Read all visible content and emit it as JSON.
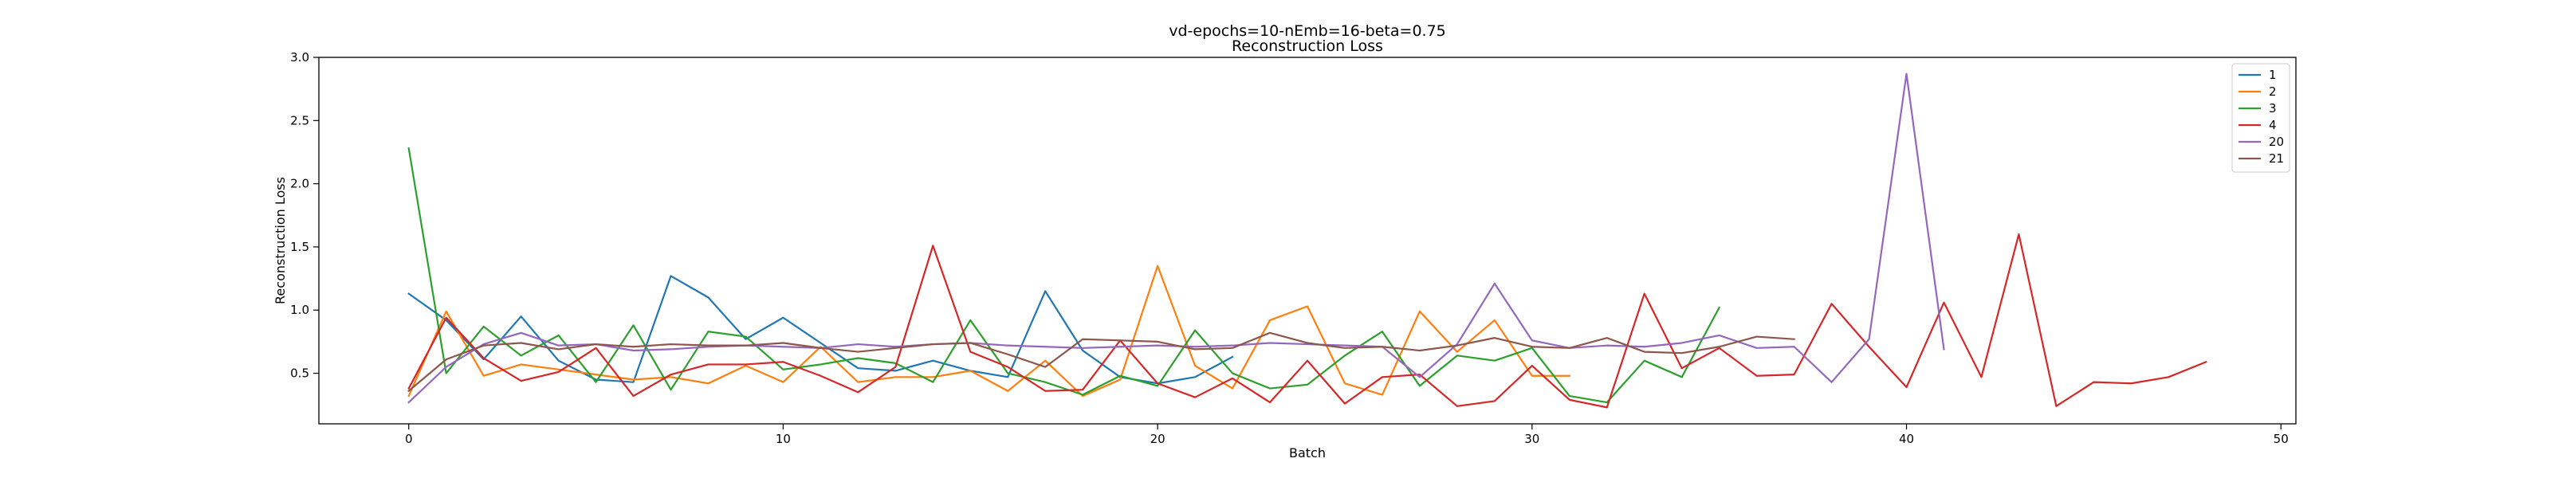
{
  "chart_data": {
    "type": "line",
    "title": "vd-epochs=10-nEmb=16-beta=0.75",
    "subtitle": "Reconstruction Loss",
    "xlabel": "Batch",
    "ylabel": "Reconstruction Loss",
    "xlim": [
      -2.4,
      50.4
    ],
    "ylim": [
      0.1,
      3.0
    ],
    "xticks": [
      0,
      10,
      20,
      30,
      40,
      50
    ],
    "yticks": [
      0.5,
      1.0,
      1.5,
      2.0,
      2.5,
      3.0
    ],
    "xtick_labels": [
      "0",
      "10",
      "20",
      "30",
      "40",
      "50"
    ],
    "ytick_labels": [
      "0.5",
      "1.0",
      "1.5",
      "2.0",
      "2.5",
      "3.0"
    ],
    "grid": false,
    "legend_position": "top-right",
    "series": [
      {
        "name": "1",
        "color": "#1f77b4",
        "x": [
          0,
          1,
          2,
          3,
          4,
          5,
          6,
          7,
          8,
          9,
          10,
          11,
          12,
          13,
          14,
          15,
          16,
          17,
          18,
          19,
          20,
          21,
          22
        ],
        "values": [
          1.13,
          0.92,
          0.61,
          0.95,
          0.6,
          0.45,
          0.43,
          1.27,
          1.1,
          0.77,
          0.94,
          0.74,
          0.54,
          0.52,
          0.6,
          0.52,
          0.47,
          1.15,
          0.68,
          0.47,
          0.42,
          0.47,
          0.63
        ]
      },
      {
        "name": "2",
        "color": "#ff7f0e",
        "x": [
          0,
          1,
          2,
          3,
          4,
          5,
          6,
          7,
          8,
          9,
          10,
          11,
          12,
          13,
          14,
          15,
          16,
          17,
          18,
          19,
          20,
          21,
          22,
          23,
          24,
          25,
          26,
          27,
          28,
          29,
          30,
          31
        ],
        "values": [
          0.32,
          0.99,
          0.48,
          0.57,
          0.53,
          0.49,
          0.45,
          0.47,
          0.42,
          0.56,
          0.43,
          0.71,
          0.43,
          0.47,
          0.47,
          0.52,
          0.36,
          0.6,
          0.32,
          0.45,
          1.35,
          0.56,
          0.38,
          0.92,
          1.03,
          0.42,
          0.33,
          0.99,
          0.67,
          0.92,
          0.48,
          0.48
        ]
      },
      {
        "name": "3",
        "color": "#2ca02c",
        "x": [
          0,
          1,
          2,
          3,
          4,
          5,
          6,
          7,
          8,
          9,
          10,
          11,
          12,
          13,
          14,
          15,
          16,
          17,
          18,
          19,
          20,
          21,
          22,
          23,
          24,
          25,
          26,
          27,
          28,
          29,
          30,
          31,
          32,
          33,
          34,
          35
        ],
        "values": [
          2.28,
          0.5,
          0.87,
          0.64,
          0.8,
          0.43,
          0.88,
          0.37,
          0.83,
          0.79,
          0.53,
          0.57,
          0.62,
          0.58,
          0.43,
          0.92,
          0.5,
          0.43,
          0.33,
          0.48,
          0.4,
          0.84,
          0.5,
          0.38,
          0.41,
          0.64,
          0.83,
          0.4,
          0.64,
          0.6,
          0.7,
          0.32,
          0.27,
          0.6,
          0.47,
          1.02
        ]
      },
      {
        "name": "4",
        "color": "#d62728",
        "x": [
          0,
          1,
          2,
          3,
          4,
          5,
          6,
          7,
          8,
          9,
          10,
          11,
          12,
          13,
          14,
          15,
          16,
          17,
          18,
          19,
          20,
          21,
          22,
          23,
          24,
          25,
          26,
          27,
          28,
          29,
          30,
          31,
          32,
          33,
          34,
          35,
          36,
          37,
          38,
          39,
          40,
          41,
          42,
          43,
          44,
          45,
          46,
          47,
          48
        ],
        "values": [
          0.38,
          0.94,
          0.62,
          0.44,
          0.51,
          0.7,
          0.32,
          0.49,
          0.57,
          0.57,
          0.59,
          0.48,
          0.35,
          0.55,
          1.51,
          0.67,
          0.55,
          0.36,
          0.37,
          0.76,
          0.42,
          0.31,
          0.46,
          0.27,
          0.6,
          0.26,
          0.47,
          0.49,
          0.24,
          0.28,
          0.56,
          0.29,
          0.23,
          1.13,
          0.54,
          0.7,
          0.48,
          0.49,
          1.05,
          0.71,
          0.39,
          1.06,
          0.47,
          1.6,
          0.24,
          0.43,
          0.42,
          0.47,
          0.59
        ]
      },
      {
        "name": "20",
        "color": "#9467bd",
        "x": [
          0,
          1,
          2,
          3,
          4,
          5,
          6,
          7,
          8,
          9,
          10,
          11,
          12,
          13,
          14,
          15,
          16,
          17,
          18,
          19,
          20,
          21,
          22,
          23,
          24,
          25,
          26,
          27,
          28,
          29,
          30,
          31,
          32,
          33,
          34,
          35,
          36,
          37,
          38,
          39,
          40,
          41
        ],
        "values": [
          0.27,
          0.55,
          0.73,
          0.82,
          0.72,
          0.73,
          0.68,
          0.69,
          0.71,
          0.72,
          0.71,
          0.7,
          0.73,
          0.71,
          0.73,
          0.74,
          0.72,
          0.71,
          0.7,
          0.71,
          0.72,
          0.71,
          0.72,
          0.74,
          0.73,
          0.72,
          0.71,
          0.47,
          0.73,
          1.21,
          0.76,
          0.7,
          0.72,
          0.71,
          0.74,
          0.8,
          0.7,
          0.71,
          0.43,
          0.77,
          2.87,
          0.69
        ]
      },
      {
        "name": "21",
        "color": "#8c564b",
        "x": [
          0,
          1,
          2,
          3,
          4,
          5,
          6,
          7,
          8,
          9,
          10,
          11,
          12,
          13,
          14,
          15,
          16,
          17,
          18,
          19,
          20,
          21,
          22,
          23,
          24,
          25,
          26,
          27,
          28,
          29,
          30,
          31,
          32,
          33,
          34,
          35,
          36,
          37
        ],
        "values": [
          0.36,
          0.61,
          0.72,
          0.74,
          0.69,
          0.73,
          0.71,
          0.73,
          0.72,
          0.72,
          0.74,
          0.7,
          0.67,
          0.7,
          0.73,
          0.74,
          0.65,
          0.55,
          0.77,
          0.76,
          0.75,
          0.69,
          0.7,
          0.82,
          0.74,
          0.7,
          0.71,
          0.68,
          0.72,
          0.78,
          0.71,
          0.7,
          0.78,
          0.67,
          0.66,
          0.71,
          0.79,
          0.77
        ]
      }
    ]
  }
}
